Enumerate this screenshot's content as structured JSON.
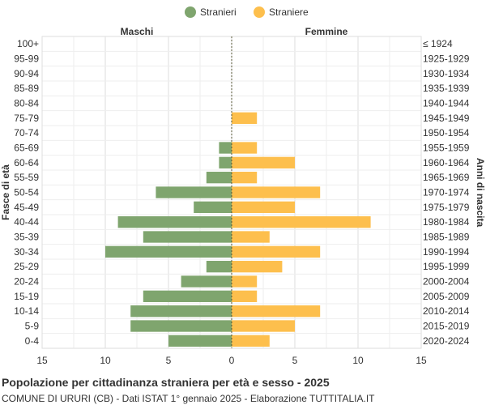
{
  "title": "Popolazione per cittadinanza straniera per età e sesso - 2025",
  "subtitle": "COMUNE DI URURI (CB) - Dati ISTAT 1° gennaio 2025 - Elaborazione TUTTITALIA.IT",
  "chart_data": {
    "type": "bar",
    "orientation": "horizontal",
    "left_header": "Maschi",
    "right_header": "Femmine",
    "ylabel_left": "Fasce di età",
    "ylabel_right": "Anni di nascita",
    "x_ticks": [
      "15",
      "10",
      "5",
      "0",
      "5",
      "10",
      "15"
    ],
    "xlim": [
      -15,
      15
    ],
    "grid": true,
    "legend_position": "top-center",
    "categories": [
      "100+",
      "95-99",
      "90-94",
      "85-89",
      "80-84",
      "75-79",
      "70-74",
      "65-69",
      "60-64",
      "55-59",
      "50-54",
      "45-49",
      "40-44",
      "35-39",
      "30-34",
      "25-29",
      "20-24",
      "15-19",
      "10-14",
      "5-9",
      "0-4"
    ],
    "birth_years": [
      "≤ 1924",
      "1925-1929",
      "1930-1934",
      "1935-1939",
      "1940-1944",
      "1945-1949",
      "1950-1954",
      "1955-1959",
      "1960-1964",
      "1965-1969",
      "1970-1974",
      "1975-1979",
      "1980-1984",
      "1985-1989",
      "1990-1994",
      "1995-1999",
      "2000-2004",
      "2005-2009",
      "2010-2014",
      "2015-2019",
      "2020-2024"
    ],
    "series": [
      {
        "name": "Stranieri",
        "side": "left",
        "color": "#7fa56e",
        "values": [
          0,
          0,
          0,
          0,
          0,
          0,
          0,
          1,
          1,
          2,
          6,
          3,
          9,
          7,
          10,
          2,
          4,
          7,
          8,
          8,
          5
        ]
      },
      {
        "name": "Straniere",
        "side": "right",
        "color": "#fdbf4d",
        "values": [
          0,
          0,
          0,
          0,
          0,
          2,
          0,
          2,
          5,
          2,
          7,
          5,
          11,
          3,
          7,
          4,
          2,
          2,
          7,
          5,
          3
        ]
      }
    ]
  }
}
